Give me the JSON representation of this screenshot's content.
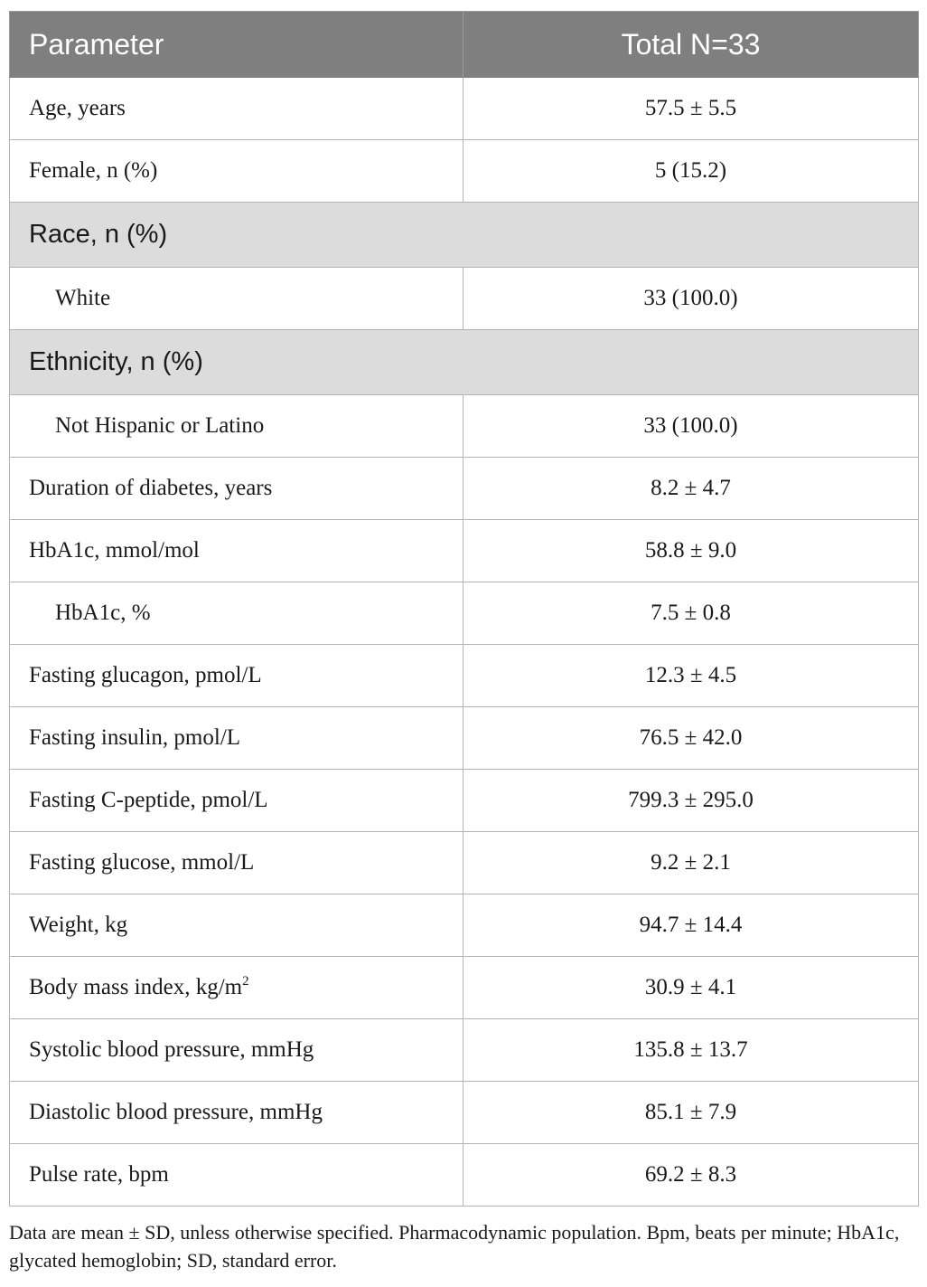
{
  "table": {
    "headers": [
      "Parameter",
      "Total N=33"
    ],
    "rows": [
      {
        "type": "data",
        "label": "Age, years",
        "value": "57.5 ± 5.5"
      },
      {
        "type": "data",
        "label": "Female, n (%)",
        "value": "5 (15.2)"
      },
      {
        "type": "section",
        "label": "Race, n (%)"
      },
      {
        "type": "data",
        "indent": true,
        "label": "White",
        "value": "33 (100.0)"
      },
      {
        "type": "section",
        "label": "Ethnicity, n (%)"
      },
      {
        "type": "data",
        "indent": true,
        "label": "Not Hispanic or Latino",
        "value": "33 (100.0)"
      },
      {
        "type": "data",
        "label": "Duration of diabetes, years",
        "value": "8.2 ± 4.7"
      },
      {
        "type": "data",
        "label": "HbA1c, mmol/mol",
        "value": "58.8 ± 9.0"
      },
      {
        "type": "data",
        "indent": true,
        "label": "HbA1c, %",
        "value": "7.5 ± 0.8"
      },
      {
        "type": "data",
        "label": "Fasting glucagon, pmol/L",
        "value": "12.3 ± 4.5"
      },
      {
        "type": "data",
        "label": "Fasting insulin, pmol/L",
        "value": "76.5 ± 42.0"
      },
      {
        "type": "data",
        "label": "Fasting C-peptide, pmol/L",
        "value": "799.3 ± 295.0"
      },
      {
        "type": "data",
        "label": "Fasting glucose, mmol/L",
        "value": "9.2 ± 2.1"
      },
      {
        "type": "data",
        "label": "Weight, kg",
        "value": "94.7 ± 14.4"
      },
      {
        "type": "data",
        "label": "Body mass index, kg/m",
        "sup": "2",
        "value": "30.9 ± 4.1"
      },
      {
        "type": "data",
        "label": "Systolic blood pressure, mmHg",
        "value": "135.8 ± 13.7"
      },
      {
        "type": "data",
        "label": "Diastolic blood pressure, mmHg",
        "value": "85.1 ± 7.9"
      },
      {
        "type": "data",
        "label": "Pulse rate, bpm",
        "value": "69.2 ± 8.3"
      }
    ]
  },
  "footnote": "Data are mean ± SD, unless otherwise specified. Pharmacodynamic population. Bpm, beats per minute; HbA1c, glycated hemoglobin; SD, standard error."
}
